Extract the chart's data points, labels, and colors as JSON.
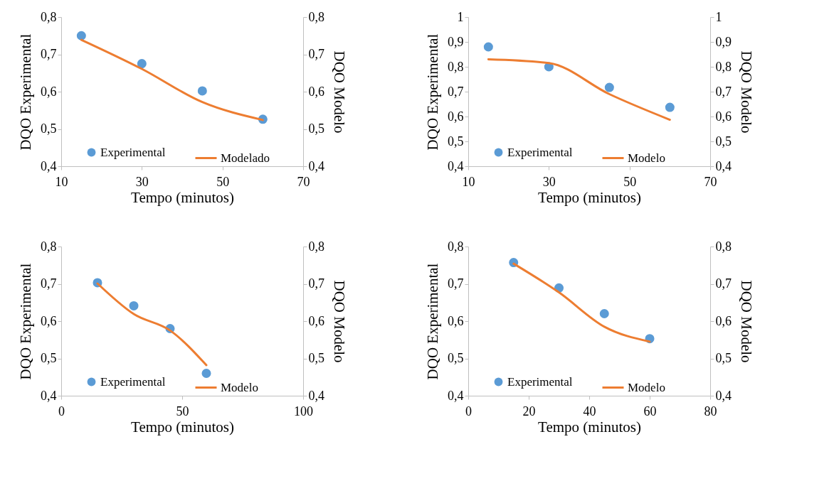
{
  "chart_data": [
    {
      "type": "scatter",
      "xlabel": "Tempo (minutos)",
      "ylabel": "DQO Experimental",
      "y2label": "DQO Modelo",
      "x": [
        15,
        30,
        45,
        60
      ],
      "xlim": [
        10,
        70
      ],
      "xticks": [
        10,
        30,
        50,
        70
      ],
      "ylim": [
        0.4,
        0.8
      ],
      "yticks": [
        {
          "value": 0.4,
          "label": "0,4"
        },
        {
          "value": 0.5,
          "label": "0,5"
        },
        {
          "value": 0.6,
          "label": "0,6"
        },
        {
          "value": 0.7,
          "label": "0,7"
        },
        {
          "value": 0.8,
          "label": "0,8"
        }
      ],
      "y2lim": [
        0.4,
        0.8
      ],
      "y2ticks": [
        {
          "value": 0.4,
          "label": "0,4"
        },
        {
          "value": 0.5,
          "label": "0,5"
        },
        {
          "value": 0.6,
          "label": "0,6"
        },
        {
          "value": 0.7,
          "label": "0,7"
        },
        {
          "value": 0.8,
          "label": "0,8"
        }
      ],
      "legend": "bottom",
      "series": [
        {
          "name": "Experimental",
          "type": "scatter",
          "color": "#5b9bd5",
          "values": [
            0.75,
            0.675,
            0.602,
            0.526
          ]
        },
        {
          "name": "Modelado",
          "type": "line",
          "axis": "y2",
          "color": "#ed7d31",
          "values": [
            0.739,
            0.661,
            0.572,
            0.524
          ]
        }
      ]
    },
    {
      "type": "scatter",
      "xlabel": "Tempo (minutos)",
      "ylabel": "DQO Experimental",
      "y2label": "DQO Modelo",
      "x": [
        15,
        30,
        45,
        60
      ],
      "xlim": [
        10,
        70
      ],
      "xticks": [
        10,
        30,
        50,
        70
      ],
      "ylim": [
        0.4,
        1
      ],
      "yticks": [
        {
          "value": 0.4,
          "label": "0,4"
        },
        {
          "value": 0.5,
          "label": "0,5"
        },
        {
          "value": 0.6,
          "label": "0,6"
        },
        {
          "value": 0.7,
          "label": "0,7"
        },
        {
          "value": 0.8,
          "label": "0,8"
        },
        {
          "value": 0.9,
          "label": "0,9"
        },
        1
      ],
      "y2lim": [
        0.4,
        1
      ],
      "y2ticks": [
        {
          "value": 0.4,
          "label": "0,4"
        },
        {
          "value": 0.5,
          "label": "0,5"
        },
        {
          "value": 0.6,
          "label": "0,6"
        },
        {
          "value": 0.7,
          "label": "0,7"
        },
        {
          "value": 0.8,
          "label": "0,8"
        },
        {
          "value": 0.9,
          "label": "0,9"
        },
        1
      ],
      "legend": "bottom",
      "series": [
        {
          "name": "Experimental",
          "type": "scatter",
          "color": "#5b9bd5",
          "values": [
            0.88,
            0.8,
            0.717,
            0.637
          ]
        },
        {
          "name": "Modelo",
          "type": "line",
          "axis": "y2",
          "color": "#ed7d31",
          "values": [
            0.83,
            0.815,
            0.69,
            0.587
          ]
        }
      ]
    },
    {
      "type": "scatter",
      "xlabel": "Tempo (minutos)",
      "ylabel": "DQO Experimental",
      "y2label": "DQO Modelo",
      "x": [
        15,
        30,
        45,
        60
      ],
      "xlim": [
        0,
        100
      ],
      "xticks": [
        0,
        50,
        100
      ],
      "ylim": [
        0.4,
        0.8
      ],
      "yticks": [
        {
          "value": 0.4,
          "label": "0,4"
        },
        {
          "value": 0.5,
          "label": "0,5"
        },
        {
          "value": 0.6,
          "label": "0,6"
        },
        {
          "value": 0.7,
          "label": "0,7"
        },
        {
          "value": 0.8,
          "label": "0,8"
        }
      ],
      "y2lim": [
        0.4,
        0.8
      ],
      "y2ticks": [
        {
          "value": 0.4,
          "label": "0,4"
        },
        {
          "value": 0.5,
          "label": "0,5"
        },
        {
          "value": 0.6,
          "label": "0,6"
        },
        {
          "value": 0.7,
          "label": "0,7"
        },
        {
          "value": 0.8,
          "label": "0,8"
        }
      ],
      "legend": "bottom",
      "series": [
        {
          "name": "Experimental",
          "type": "scatter",
          "color": "#5b9bd5",
          "values": [
            0.703,
            0.641,
            0.58,
            0.46
          ]
        },
        {
          "name": "Modelo",
          "type": "line",
          "axis": "y2",
          "color": "#ed7d31",
          "values": [
            0.701,
            0.619,
            0.575,
            0.482
          ]
        }
      ]
    },
    {
      "type": "scatter",
      "xlabel": "Tempo (minutos)",
      "ylabel": "DQO Experimental",
      "y2label": "DQO Modelo",
      "x": [
        15,
        30,
        45,
        60
      ],
      "xlim": [
        0,
        80
      ],
      "xticks": [
        0,
        20,
        40,
        60,
        80
      ],
      "ylim": [
        0.4,
        0.8
      ],
      "yticks": [
        {
          "value": 0.4,
          "label": "0,4"
        },
        {
          "value": 0.5,
          "label": "0,5"
        },
        {
          "value": 0.6,
          "label": "0,6"
        },
        {
          "value": 0.7,
          "label": "0,7"
        },
        {
          "value": 0.8,
          "label": "0,8"
        }
      ],
      "y2lim": [
        0.4,
        0.8
      ],
      "y2ticks": [
        {
          "value": 0.4,
          "label": "0,4"
        },
        {
          "value": 0.5,
          "label": "0,5"
        },
        {
          "value": 0.6,
          "label": "0,6"
        },
        {
          "value": 0.7,
          "label": "0,7"
        },
        {
          "value": 0.8,
          "label": "0,8"
        }
      ],
      "legend": "bottom",
      "series": [
        {
          "name": "Experimental",
          "type": "scatter",
          "color": "#5b9bd5",
          "values": [
            0.757,
            0.689,
            0.62,
            0.553
          ]
        },
        {
          "name": "Modelo",
          "type": "line",
          "axis": "y2",
          "color": "#ed7d31",
          "values": [
            0.754,
            0.677,
            0.585,
            0.545
          ]
        }
      ]
    }
  ]
}
